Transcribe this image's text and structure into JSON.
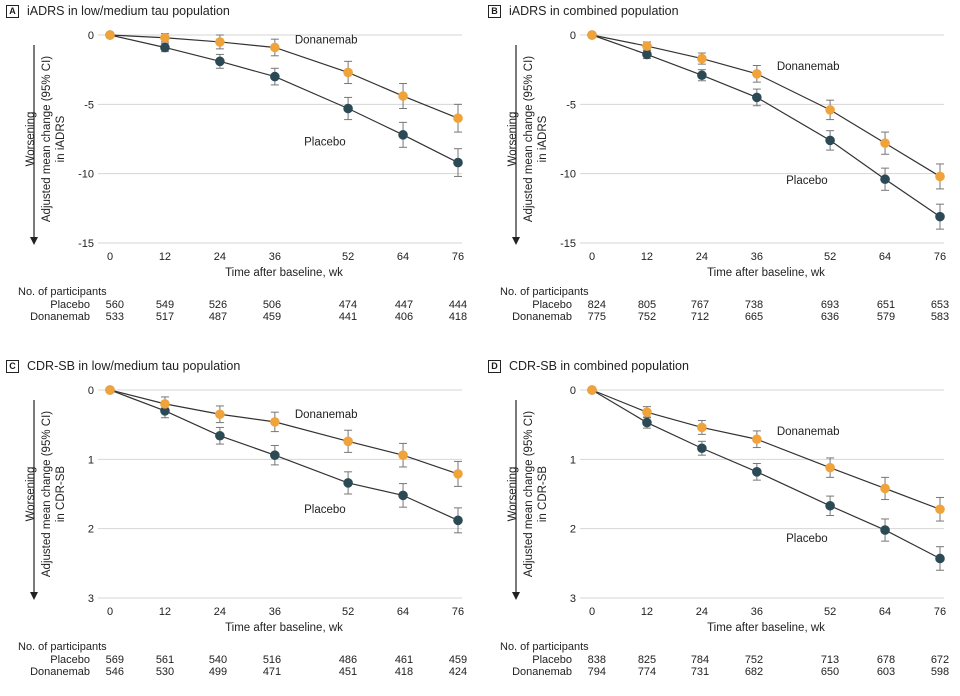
{
  "common": {
    "xlabel": "Time after baseline, wk",
    "worsening": "Worsening",
    "participants_header": "No. of participants",
    "placebo_color": "#2c4a55",
    "donanemab_color": "#f0a33a"
  },
  "chart_data": [
    {
      "letter": "A",
      "title": "iADRS in low/medium tau population",
      "type": "line",
      "ylabel_line1": "Adjusted mean change (95% CI)",
      "ylabel_line2": "in iADRS",
      "x": [
        0,
        12,
        24,
        36,
        52,
        64,
        76
      ],
      "xticks": [
        "0",
        "12",
        "24",
        "36",
        "52",
        "64",
        "76"
      ],
      "ylim": [
        -15,
        0
      ],
      "yticks": [
        0,
        -5,
        -10,
        -15
      ],
      "ytick_labels": [
        "0",
        "-5",
        "-10",
        "-15"
      ],
      "grid": true,
      "series": [
        {
          "name": "Placebo",
          "values": [
            0,
            -0.9,
            -1.9,
            -3.0,
            -5.3,
            -7.2,
            -9.2
          ],
          "ci": [
            0,
            0.3,
            0.5,
            0.6,
            0.8,
            0.9,
            1.0
          ]
        },
        {
          "name": "Donanemab",
          "values": [
            0,
            -0.2,
            -0.5,
            -0.9,
            -2.7,
            -4.4,
            -6.0
          ],
          "ci": [
            0,
            0.3,
            0.5,
            0.6,
            0.8,
            0.9,
            1.0
          ]
        }
      ],
      "participants": [
        {
          "label": "Placebo",
          "counts": [
            "560",
            "549",
            "526",
            "506",
            "474",
            "447",
            "444"
          ]
        },
        {
          "label": "Donanemab",
          "counts": [
            "533",
            "517",
            "487",
            "459",
            "441",
            "406",
            "418"
          ]
        }
      ]
    },
    {
      "letter": "B",
      "title": "iADRS in combined population",
      "type": "line",
      "ylabel_line1": "Adjusted mean change (95% CI)",
      "ylabel_line2": "in iADRS",
      "x": [
        0,
        12,
        24,
        36,
        52,
        64,
        76
      ],
      "xticks": [
        "0",
        "12",
        "24",
        "36",
        "52",
        "64",
        "76"
      ],
      "ylim": [
        -15,
        0
      ],
      "yticks": [
        0,
        -5,
        -10,
        -15
      ],
      "ytick_labels": [
        "0",
        "-5",
        "-10",
        "-15"
      ],
      "grid": true,
      "series": [
        {
          "name": "Placebo",
          "values": [
            0,
            -1.4,
            -2.9,
            -4.5,
            -7.6,
            -10.4,
            -13.1
          ],
          "ci": [
            0,
            0.3,
            0.4,
            0.6,
            0.7,
            0.8,
            0.9
          ]
        },
        {
          "name": "Donanemab",
          "values": [
            0,
            -0.8,
            -1.7,
            -2.8,
            -5.4,
            -7.8,
            -10.2
          ],
          "ci": [
            0,
            0.3,
            0.4,
            0.6,
            0.7,
            0.8,
            0.9
          ]
        }
      ],
      "participants": [
        {
          "label": "Placebo",
          "counts": [
            "824",
            "805",
            "767",
            "738",
            "693",
            "651",
            "653"
          ]
        },
        {
          "label": "Donanemab",
          "counts": [
            "775",
            "752",
            "712",
            "665",
            "636",
            "579",
            "583"
          ]
        }
      ]
    },
    {
      "letter": "C",
      "title": "CDR-SB in low/medium tau population",
      "type": "line",
      "ylabel_line1": "Adjusted mean change (95% CI)",
      "ylabel_line2": "in CDR-SB",
      "x": [
        0,
        12,
        24,
        36,
        52,
        64,
        76
      ],
      "xticks": [
        "0",
        "12",
        "24",
        "36",
        "52",
        "64",
        "76"
      ],
      "ylim": [
        3,
        0
      ],
      "yticks": [
        0,
        1,
        2,
        3
      ],
      "ytick_labels": [
        "0",
        "1",
        "2",
        "3"
      ],
      "grid": true,
      "series": [
        {
          "name": "Placebo",
          "values": [
            0,
            0.3,
            0.66,
            0.94,
            1.34,
            1.52,
            1.88
          ],
          "ci": [
            0,
            0.1,
            0.12,
            0.14,
            0.16,
            0.17,
            0.18
          ]
        },
        {
          "name": "Donanemab",
          "values": [
            0,
            0.2,
            0.35,
            0.46,
            0.74,
            0.94,
            1.21
          ],
          "ci": [
            0,
            0.1,
            0.12,
            0.14,
            0.16,
            0.17,
            0.18
          ]
        }
      ],
      "participants": [
        {
          "label": "Placebo",
          "counts": [
            "569",
            "561",
            "540",
            "516",
            "486",
            "461",
            "459"
          ]
        },
        {
          "label": "Donanemab",
          "counts": [
            "546",
            "530",
            "499",
            "471",
            "451",
            "418",
            "424"
          ]
        }
      ]
    },
    {
      "letter": "D",
      "title": "CDR-SB in combined population",
      "type": "line",
      "ylabel_line1": "Adjusted mean change (95% CI)",
      "ylabel_line2": "in CDR-SB",
      "x": [
        0,
        12,
        24,
        36,
        52,
        64,
        76
      ],
      "xticks": [
        "0",
        "12",
        "24",
        "36",
        "52",
        "64",
        "76"
      ],
      "ylim": [
        3,
        0
      ],
      "yticks": [
        0,
        1,
        2,
        3
      ],
      "ytick_labels": [
        "0",
        "1",
        "2",
        "3"
      ],
      "grid": true,
      "series": [
        {
          "name": "Placebo",
          "values": [
            0,
            0.47,
            0.84,
            1.18,
            1.67,
            2.02,
            2.43
          ],
          "ci": [
            0,
            0.08,
            0.1,
            0.12,
            0.14,
            0.16,
            0.17
          ]
        },
        {
          "name": "Donanemab",
          "values": [
            0,
            0.32,
            0.54,
            0.71,
            1.12,
            1.42,
            1.72
          ],
          "ci": [
            0,
            0.08,
            0.1,
            0.12,
            0.14,
            0.16,
            0.17
          ]
        }
      ],
      "participants": [
        {
          "label": "Placebo",
          "counts": [
            "838",
            "825",
            "784",
            "752",
            "713",
            "678",
            "672"
          ]
        },
        {
          "label": "Donanemab",
          "counts": [
            "794",
            "774",
            "731",
            "682",
            "650",
            "603",
            "598"
          ]
        }
      ]
    }
  ]
}
